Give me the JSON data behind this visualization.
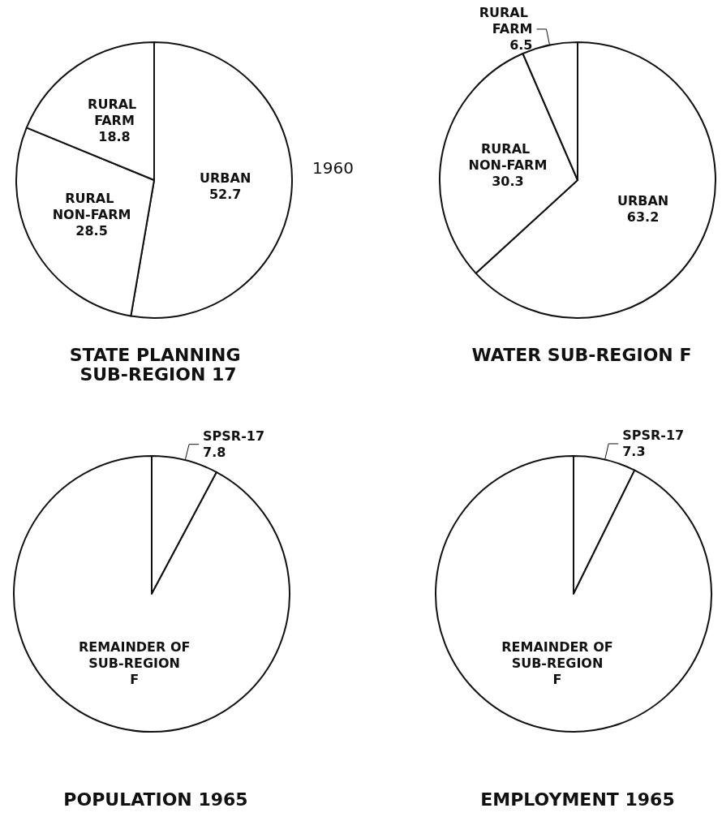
{
  "chart_data": [
    {
      "type": "pie",
      "title": "STATE PLANNING SUB-REGION 17",
      "categories": [
        "URBAN",
        "RURAL NON-FARM",
        "RURAL FARM"
      ],
      "values": [
        52.7,
        28.5,
        18.8
      ],
      "colors": [
        "#ffffff",
        "#ffffff",
        "#ffffff"
      ],
      "data_labels": true,
      "annotations": [
        "1960"
      ]
    },
    {
      "type": "pie",
      "title": "WATER SUB-REGION F",
      "categories": [
        "URBAN",
        "RURAL NON-FARM",
        "RURAL FARM"
      ],
      "values": [
        63.2,
        30.3,
        6.5
      ],
      "colors": [
        "#ffffff",
        "#ffffff",
        "#ffffff"
      ],
      "data_labels": true
    },
    {
      "type": "pie",
      "title": "POPULATION 1965",
      "categories": [
        "SPSR-17",
        "REMAINDER OF SUB-REGION F"
      ],
      "values": [
        7.8,
        92.2
      ],
      "colors": [
        "#ffffff",
        "#ffffff"
      ],
      "value_labels": [
        "7.8",
        null
      ]
    },
    {
      "type": "pie",
      "title": "EMPLOYMENT 1965",
      "categories": [
        "SPSR-17",
        "REMAINDER OF SUB-REGION F"
      ],
      "values": [
        7.3,
        92.7
      ],
      "colors": [
        "#ffffff",
        "#ffffff"
      ],
      "value_labels": [
        "7.3",
        null
      ]
    }
  ]
}
